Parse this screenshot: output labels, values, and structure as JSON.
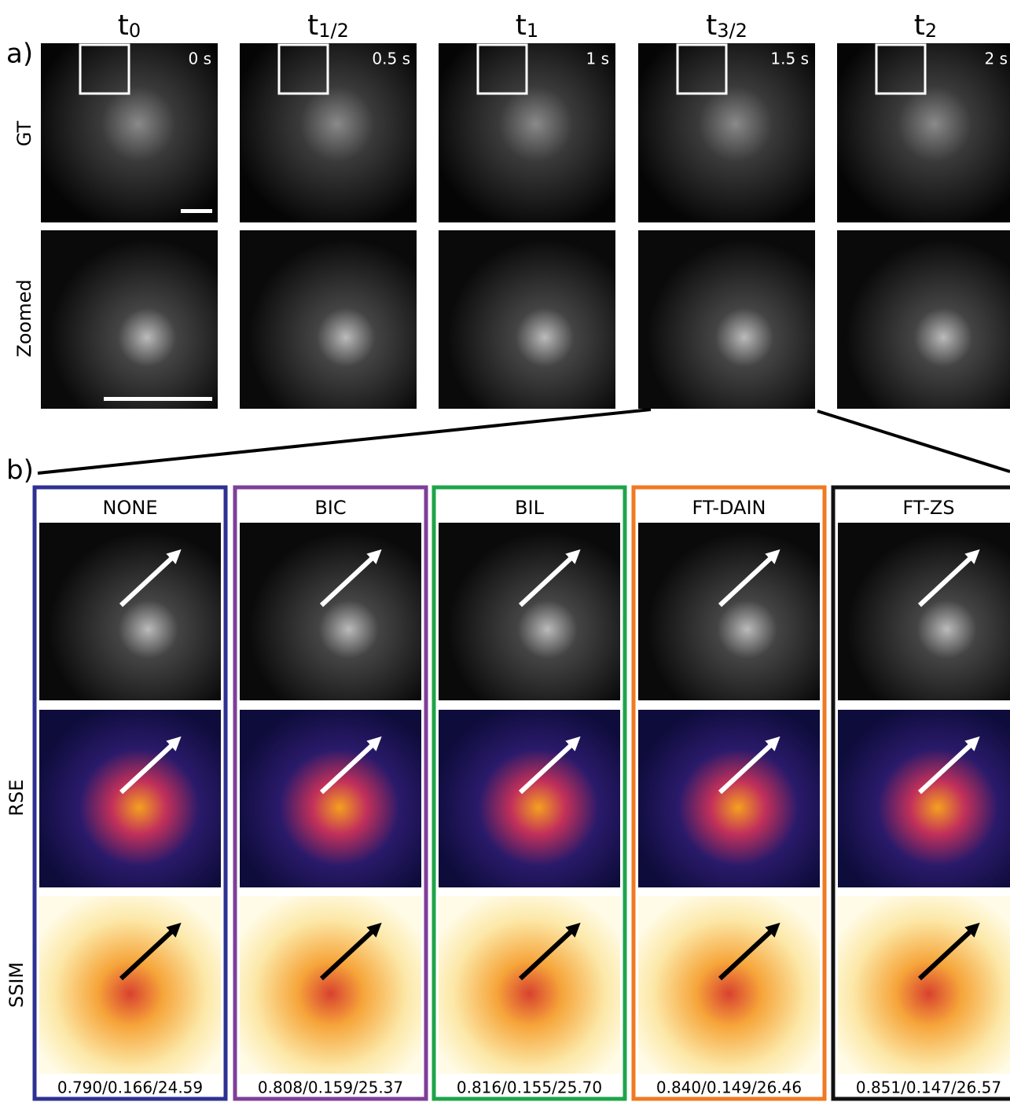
{
  "panel_a": {
    "label": "a)",
    "columns": [
      {
        "base": "t",
        "sub": "0",
        "time": "0 s"
      },
      {
        "base": "t",
        "sub": "1/2",
        "time": "0.5 s"
      },
      {
        "base": "t",
        "sub": "1",
        "time": "1 s"
      },
      {
        "base": "t",
        "sub": "3/2",
        "time": "1.5 s"
      },
      {
        "base": "t",
        "sub": "2",
        "time": "2 s"
      }
    ],
    "row_labels": [
      "GT",
      "Zoomed"
    ]
  },
  "panel_b": {
    "label": "b)",
    "methods": [
      {
        "name": "NONE",
        "color": "#2e3192",
        "metrics": "0.790/0.166/24.59"
      },
      {
        "name": "BIC",
        "color": "#7e3f98",
        "metrics": "0.808/0.159/25.37"
      },
      {
        "name": "BIL",
        "color": "#1fa44a",
        "metrics": "0.816/0.155/25.70"
      },
      {
        "name": "FT-DAIN",
        "color": "#f07a22",
        "metrics": "0.840/0.149/26.46"
      },
      {
        "name": "FT-ZS",
        "color": "#111111",
        "metrics": "0.851/0.147/26.57"
      }
    ],
    "row_labels": [
      "RSE",
      "SSIM"
    ]
  }
}
